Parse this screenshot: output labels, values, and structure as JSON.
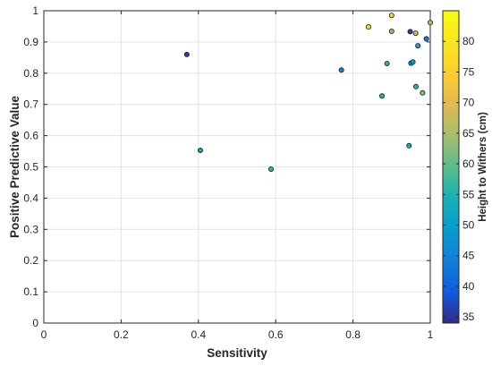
{
  "chart_data": {
    "type": "scatter",
    "xlabel": "Sensitivity",
    "ylabel": "Positive Predictive Value",
    "xlim": [
      0,
      1
    ],
    "ylim": [
      0,
      1
    ],
    "x_ticks": [
      "0",
      "0.2",
      "0.4",
      "0.6",
      "0.8",
      "1"
    ],
    "y_ticks": [
      "0",
      "0.1",
      "0.2",
      "0.3",
      "0.4",
      "0.5",
      "0.6",
      "0.7",
      "0.8",
      "0.9",
      "1"
    ],
    "grid": true,
    "colorbar": {
      "label": "Height to Withers (cm)",
      "range": [
        34,
        85
      ],
      "ticks": [
        "35",
        "40",
        "45",
        "50",
        "55",
        "60",
        "65",
        "70",
        "75",
        "80"
      ],
      "colormap": "parula"
    },
    "points": [
      {
        "x": 0.37,
        "y": 0.86,
        "c": 36
      },
      {
        "x": 0.405,
        "y": 0.553,
        "c": 52
      },
      {
        "x": 0.588,
        "y": 0.493,
        "c": 56
      },
      {
        "x": 0.77,
        "y": 0.81,
        "c": 45
      },
      {
        "x": 0.84,
        "y": 0.948,
        "c": 80
      },
      {
        "x": 0.875,
        "y": 0.727,
        "c": 55
      },
      {
        "x": 0.888,
        "y": 0.831,
        "c": 56
      },
      {
        "x": 0.9,
        "y": 0.985,
        "c": 76
      },
      {
        "x": 0.9,
        "y": 0.934,
        "c": 64
      },
      {
        "x": 0.945,
        "y": 0.568,
        "c": 54
      },
      {
        "x": 0.948,
        "y": 0.933,
        "c": 36
      },
      {
        "x": 0.95,
        "y": 0.832,
        "c": 48
      },
      {
        "x": 0.955,
        "y": 0.836,
        "c": 50
      },
      {
        "x": 0.962,
        "y": 0.928,
        "c": 69
      },
      {
        "x": 0.963,
        "y": 0.757,
        "c": 56
      },
      {
        "x": 0.968,
        "y": 0.888,
        "c": 52
      },
      {
        "x": 0.98,
        "y": 0.737,
        "c": 62
      },
      {
        "x": 0.99,
        "y": 0.91,
        "c": 46
      },
      {
        "x": 1.0,
        "y": 0.962,
        "c": 66
      }
    ]
  }
}
